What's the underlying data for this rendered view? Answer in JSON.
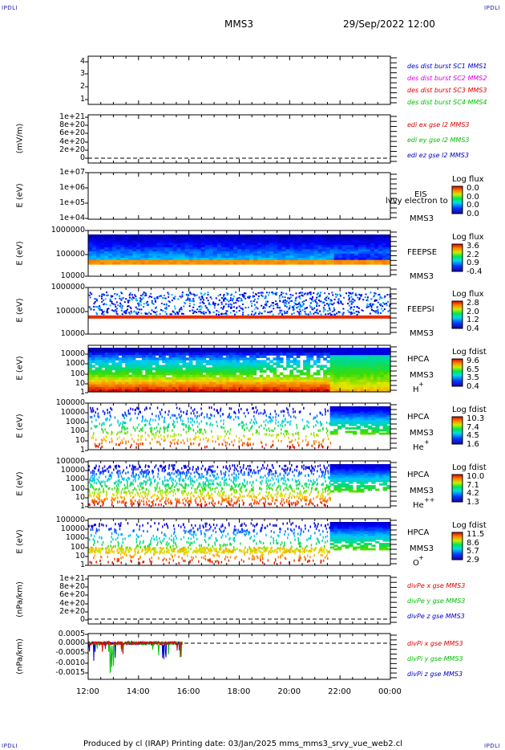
{
  "corners": {
    "tl": "IPDLI",
    "tr": "IPDLI",
    "bl": "IPDLI",
    "br": "IPDLI"
  },
  "header": {
    "mission": "MMS3",
    "date": "29/Sep/2022 12:00"
  },
  "footer": {
    "text": "Produced by cl (IRAP)   Printing date: 03/Jan/2025   mms_mms3_srvy_vue_web2.cl"
  },
  "chart_data": {
    "type": "multi-panel spectrogram",
    "x_ticks": [
      "12:00",
      "14:00",
      "16:00",
      "18:00",
      "20:00",
      "22:00",
      "00:00"
    ],
    "panels": [
      {
        "id": "burst",
        "ylabel": "",
        "yticks": [
          "4",
          "3",
          "2",
          "1"
        ],
        "legend": [
          {
            "text": "des dist burst SC1 MMS1",
            "color": "#0000c8"
          },
          {
            "text": "des dist burst SC2 MMS2",
            "color": "#e000e0"
          },
          {
            "text": "des dist burst SC3 MMS3",
            "color": "#e00000"
          },
          {
            "text": "des dist burst SC4 MMS4",
            "color": "#00c000"
          }
        ]
      },
      {
        "id": "edi",
        "ylabel": "(mV/m)",
        "yticks": [
          "1e+21",
          "8e+20",
          "6e+20",
          "4e+20",
          "2e+20",
          "0"
        ],
        "legend": [
          {
            "text": "edi ex gse l2 MMS3",
            "color": "#e00000"
          },
          {
            "text": "edi ey gse l2 MMS3",
            "color": "#00c000"
          },
          {
            "text": "edi ez gse l2 MMS3",
            "color": "#0000c8"
          }
        ]
      },
      {
        "id": "eis",
        "ylabel": "E (eV)",
        "yticks": [
          "1e+07",
          "1e+06",
          "1e+05",
          "1e+04"
        ],
        "inst": [
          "EIS",
          "MMS3"
        ],
        "overlay": "lvvy electron to",
        "colorbar": {
          "title": "Log flux",
          "values": [
            "0.0",
            "0.0",
            "0.0",
            "0.0"
          ]
        }
      },
      {
        "id": "feepse",
        "ylabel": "E (eV)",
        "yticks": [
          "1000000",
          "100000",
          "10000"
        ],
        "inst": [
          "FEEPSE",
          "MMS3"
        ],
        "colorbar": {
          "title": "Log flux",
          "values": [
            "3.6",
            "2.2",
            "0.9",
            "-0.4"
          ]
        }
      },
      {
        "id": "feepsi",
        "ylabel": "E (eV)",
        "yticks": [
          "1000000",
          "100000",
          "10000"
        ],
        "inst": [
          "FEEPSI",
          "MMS3"
        ],
        "colorbar": {
          "title": "Log flux",
          "values": [
            "2.8",
            "2.0",
            "1.2",
            "0.4"
          ]
        }
      },
      {
        "id": "hpca_h",
        "ylabel": "E (eV)",
        "yticks": [
          "10000",
          "1000",
          "100",
          "10",
          "1"
        ],
        "inst": [
          "HPCA",
          "MMS3",
          "H",
          "+"
        ],
        "colorbar": {
          "title": "Log fdist",
          "values": [
            "9.6",
            "6.5",
            "3.5",
            "0.4"
          ]
        }
      },
      {
        "id": "hpca_he",
        "ylabel": "E (eV)",
        "yticks": [
          "100000",
          "10000",
          "1000",
          "100",
          "10",
          "1"
        ],
        "inst": [
          "HPCA",
          "MMS3",
          "He",
          "+"
        ],
        "colorbar": {
          "title": "Log fdist",
          "values": [
            "10.3",
            "7.4",
            "4.5",
            "1.6"
          ]
        }
      },
      {
        "id": "hpca_hepp",
        "ylabel": "E (eV)",
        "yticks": [
          "100000",
          "10000",
          "1000",
          "100",
          "10",
          "1"
        ],
        "inst": [
          "HPCA",
          "MMS3",
          "He",
          "++"
        ],
        "colorbar": {
          "title": "Log fdist",
          "values": [
            "10.0",
            "7.1",
            "4.2",
            "1.3"
          ]
        }
      },
      {
        "id": "hpca_o",
        "ylabel": "E (eV)",
        "yticks": [
          "100000",
          "10000",
          "1000",
          "100",
          "10",
          "1"
        ],
        "inst": [
          "HPCA",
          "MMS3",
          "O",
          "+"
        ],
        "colorbar": {
          "title": "Log fdist",
          "values": [
            "11.5",
            "8.6",
            "5.7",
            "2.9"
          ]
        }
      },
      {
        "id": "divpe",
        "ylabel": "(nPa/km)",
        "yticks": [
          "1e+21",
          "8e+20",
          "6e+20",
          "4e+20",
          "2e+20",
          "0"
        ],
        "legend": [
          {
            "text": "divPe x gse MMS3",
            "color": "#e00000"
          },
          {
            "text": "divPe y gse MMS3",
            "color": "#00c000"
          },
          {
            "text": "divPe z gse MMS3",
            "color": "#0000c8"
          }
        ]
      },
      {
        "id": "divpi",
        "ylabel": "(nPa/km)",
        "yticks": [
          "0.0005",
          "0.0000",
          "-0.0005",
          "-0.0010",
          "-0.0015"
        ],
        "legend": [
          {
            "text": "divPi x gse MMS3",
            "color": "#e00000"
          },
          {
            "text": "divPi y gse MMS3",
            "color": "#00c000"
          },
          {
            "text": "divPi z gse MMS3",
            "color": "#0000c8"
          }
        ]
      }
    ]
  }
}
